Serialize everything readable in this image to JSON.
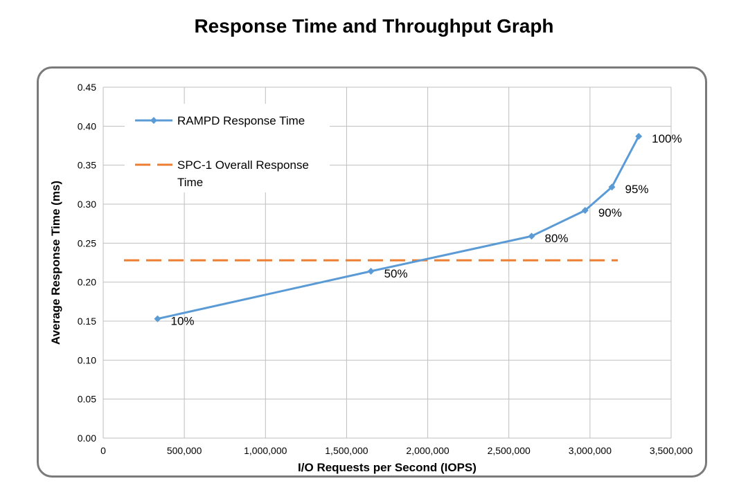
{
  "chart_data": {
    "type": "line",
    "title": "Response Time and Throughput Graph",
    "xlabel": "I/O Requests per Second (IOPS)",
    "ylabel": "Average Response Time (ms)",
    "xlim": [
      0,
      3500000
    ],
    "ylim": [
      0,
      0.45
    ],
    "x_ticks": [
      0,
      500000,
      1000000,
      1500000,
      2000000,
      2500000,
      3000000,
      3500000
    ],
    "x_tick_labels": [
      "0",
      "500,000",
      "1,000,000",
      "1,500,000",
      "2,000,000",
      "2,500,000",
      "3,000,000",
      "3,500,000"
    ],
    "y_ticks": [
      0,
      0.05,
      0.1,
      0.15,
      0.2,
      0.25,
      0.3,
      0.35,
      0.4,
      0.45
    ],
    "y_tick_labels": [
      "0.00",
      "0.05",
      "0.10",
      "0.15",
      "0.20",
      "0.25",
      "0.30",
      "0.35",
      "0.40",
      "0.45"
    ],
    "grid": true,
    "legend_position": "top-left",
    "series": [
      {
        "name": "RAMPD Response Time",
        "style": "solid-line-diamond-markers",
        "color": "#5b9bd5",
        "x": [
          335000,
          1650000,
          2640000,
          2970000,
          3135000,
          3300000
        ],
        "y": [
          0.153,
          0.214,
          0.259,
          0.292,
          0.322,
          0.387
        ],
        "labels": [
          "10%",
          "50%",
          "80%",
          "90%",
          "95%",
          "100%"
        ]
      },
      {
        "name": "SPC-1 Overall Response Time",
        "style": "dashed-line",
        "color": "#ed7d31",
        "x": [
          0,
          3300000
        ],
        "y": [
          0.228,
          0.228
        ]
      }
    ]
  }
}
